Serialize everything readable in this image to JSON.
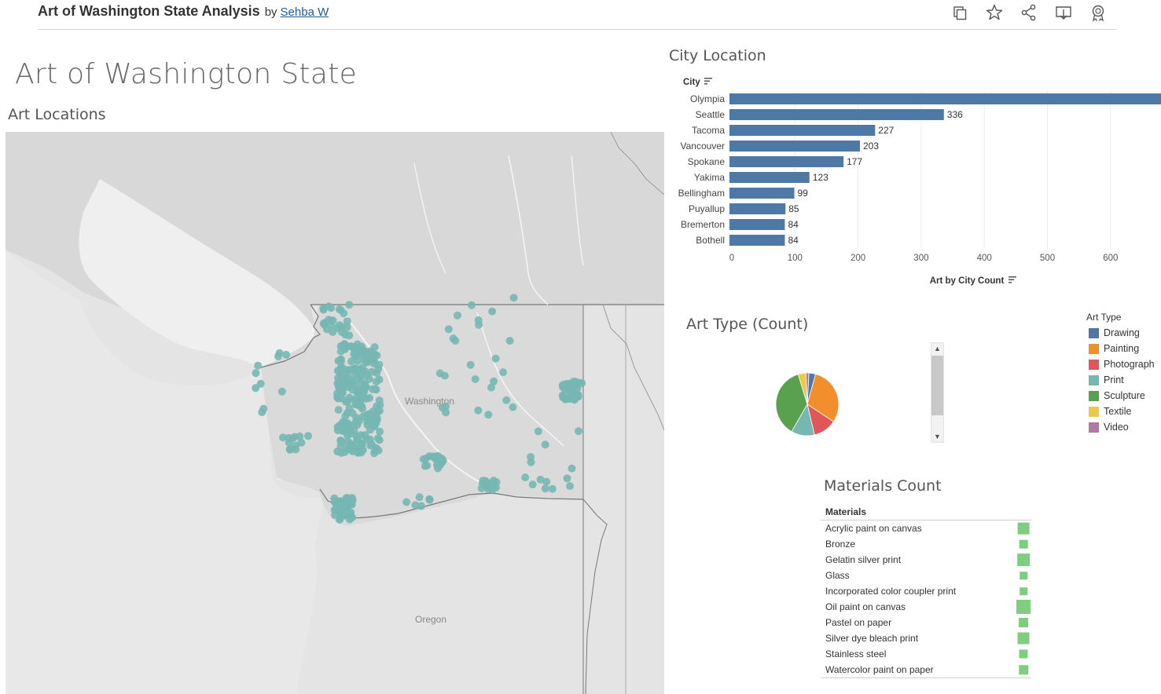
{
  "header": {
    "title": "Art of Washington State Analysis",
    "by": "by",
    "author": "Sehba W",
    "icons": [
      "duplicate-icon",
      "star-icon",
      "share-icon",
      "download-icon",
      "badge-icon"
    ]
  },
  "dashboard": {
    "title": "Art of Washington State",
    "map_title": "Art Locations",
    "city_title": "City Location",
    "type_title": "Art Type (Count)",
    "materials_title": "Materials Count"
  },
  "map": {
    "labels": {
      "washington": "Washington",
      "oregon": "Oregon"
    },
    "point_color": "#76b7b2"
  },
  "chart_data": [
    {
      "type": "bar",
      "orientation": "horizontal",
      "ylabel": "City",
      "xlabel": "Art by City Count",
      "categories": [
        "Olympia",
        "Seattle",
        "Tacoma",
        "Vancouver",
        "Spokane",
        "Yakima",
        "Bellingham",
        "Puyallup",
        "Bremerton",
        "Bothell"
      ],
      "values": [
        680,
        336,
        227,
        203,
        177,
        123,
        99,
        85,
        84,
        84
      ],
      "data_labels": [
        "",
        "336",
        "227",
        "203",
        "177",
        "123",
        "99",
        "85",
        "84",
        "84"
      ],
      "xticks": [
        0,
        100,
        200,
        300,
        400,
        500,
        600
      ],
      "xlim": [
        0,
        670
      ],
      "color": "#4e79a7",
      "grid": true
    },
    {
      "type": "pie",
      "legend_title": "Art Type",
      "legend_placement": "right",
      "labels": [
        "Drawing",
        "Painting",
        "Photograph",
        "Print",
        "Sculpture",
        "Textile",
        "Video"
      ],
      "colors": [
        "#4e79a7",
        "#f28e2b",
        "#e15759",
        "#76b7b2",
        "#59a14f",
        "#edc948",
        "#b07aa1"
      ],
      "values": [
        3.5,
        30,
        12,
        12,
        37,
        4,
        1.5
      ]
    },
    {
      "type": "table",
      "column_header": "Materials",
      "rows": [
        "Acrylic paint on canvas",
        "Bronze",
        "Gelatin silver print",
        "Glass",
        "Incorporated color coupler print",
        "Oil paint on canvas",
        "Pastel on paper",
        "Silver dye bleach print",
        "Stainless steel",
        "Watercolor paint on paper"
      ],
      "values": [
        180,
        60,
        220,
        40,
        40,
        320,
        90,
        190,
        70,
        80
      ],
      "color": "#7fce7f"
    }
  ]
}
